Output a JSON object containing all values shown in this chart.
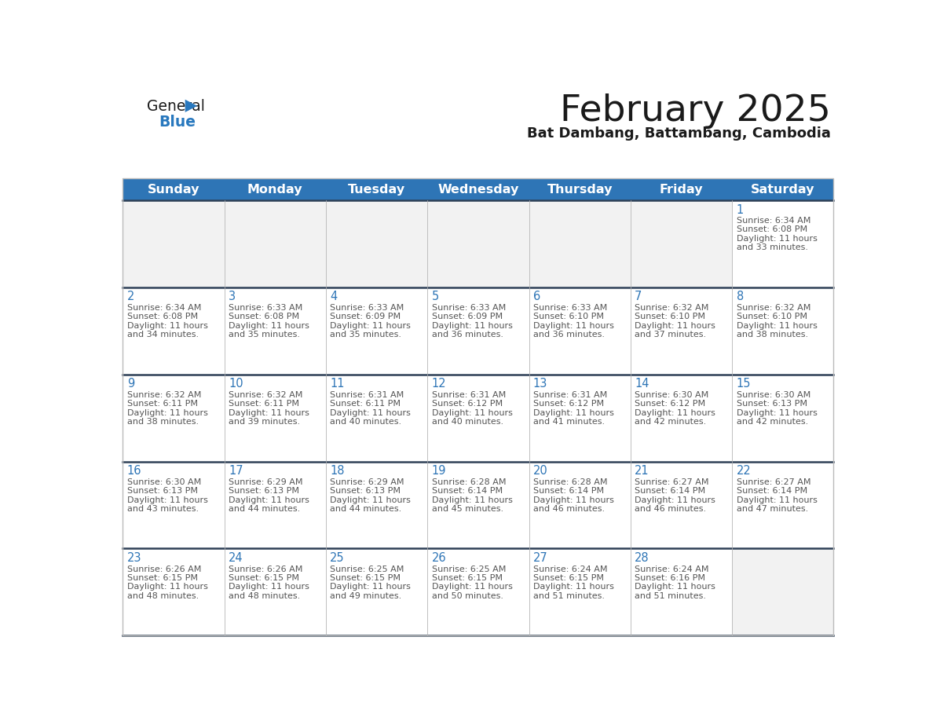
{
  "title": "February 2025",
  "subtitle": "Bat Dambang, Battambang, Cambodia",
  "days_of_week": [
    "Sunday",
    "Monday",
    "Tuesday",
    "Wednesday",
    "Thursday",
    "Friday",
    "Saturday"
  ],
  "header_bg": "#2E75B6",
  "header_text": "#FFFFFF",
  "cell_bg": "#FFFFFF",
  "cell_bg_empty": "#F2F2F2",
  "cell_border_color": "#BBBBBB",
  "row_separator_color": "#2E4057",
  "day_number_color": "#2E75B6",
  "info_text_color": "#555555",
  "title_color": "#1a1a1a",
  "logo_general_color": "#1a1a1a",
  "logo_blue_color": "#2878BE",
  "calendar_data": [
    [
      null,
      null,
      null,
      null,
      null,
      null,
      {
        "day": 1,
        "sunrise": "6:34 AM",
        "sunset": "6:08 PM",
        "daylight": "11 hours and 33 minutes."
      }
    ],
    [
      {
        "day": 2,
        "sunrise": "6:34 AM",
        "sunset": "6:08 PM",
        "daylight": "11 hours and 34 minutes."
      },
      {
        "day": 3,
        "sunrise": "6:33 AM",
        "sunset": "6:08 PM",
        "daylight": "11 hours and 35 minutes."
      },
      {
        "day": 4,
        "sunrise": "6:33 AM",
        "sunset": "6:09 PM",
        "daylight": "11 hours and 35 minutes."
      },
      {
        "day": 5,
        "sunrise": "6:33 AM",
        "sunset": "6:09 PM",
        "daylight": "11 hours and 36 minutes."
      },
      {
        "day": 6,
        "sunrise": "6:33 AM",
        "sunset": "6:10 PM",
        "daylight": "11 hours and 36 minutes."
      },
      {
        "day": 7,
        "sunrise": "6:32 AM",
        "sunset": "6:10 PM",
        "daylight": "11 hours and 37 minutes."
      },
      {
        "day": 8,
        "sunrise": "6:32 AM",
        "sunset": "6:10 PM",
        "daylight": "11 hours and 38 minutes."
      }
    ],
    [
      {
        "day": 9,
        "sunrise": "6:32 AM",
        "sunset": "6:11 PM",
        "daylight": "11 hours and 38 minutes."
      },
      {
        "day": 10,
        "sunrise": "6:32 AM",
        "sunset": "6:11 PM",
        "daylight": "11 hours and 39 minutes."
      },
      {
        "day": 11,
        "sunrise": "6:31 AM",
        "sunset": "6:11 PM",
        "daylight": "11 hours and 40 minutes."
      },
      {
        "day": 12,
        "sunrise": "6:31 AM",
        "sunset": "6:12 PM",
        "daylight": "11 hours and 40 minutes."
      },
      {
        "day": 13,
        "sunrise": "6:31 AM",
        "sunset": "6:12 PM",
        "daylight": "11 hours and 41 minutes."
      },
      {
        "day": 14,
        "sunrise": "6:30 AM",
        "sunset": "6:12 PM",
        "daylight": "11 hours and 42 minutes."
      },
      {
        "day": 15,
        "sunrise": "6:30 AM",
        "sunset": "6:13 PM",
        "daylight": "11 hours and 42 minutes."
      }
    ],
    [
      {
        "day": 16,
        "sunrise": "6:30 AM",
        "sunset": "6:13 PM",
        "daylight": "11 hours and 43 minutes."
      },
      {
        "day": 17,
        "sunrise": "6:29 AM",
        "sunset": "6:13 PM",
        "daylight": "11 hours and 44 minutes."
      },
      {
        "day": 18,
        "sunrise": "6:29 AM",
        "sunset": "6:13 PM",
        "daylight": "11 hours and 44 minutes."
      },
      {
        "day": 19,
        "sunrise": "6:28 AM",
        "sunset": "6:14 PM",
        "daylight": "11 hours and 45 minutes."
      },
      {
        "day": 20,
        "sunrise": "6:28 AM",
        "sunset": "6:14 PM",
        "daylight": "11 hours and 46 minutes."
      },
      {
        "day": 21,
        "sunrise": "6:27 AM",
        "sunset": "6:14 PM",
        "daylight": "11 hours and 46 minutes."
      },
      {
        "day": 22,
        "sunrise": "6:27 AM",
        "sunset": "6:14 PM",
        "daylight": "11 hours and 47 minutes."
      }
    ],
    [
      {
        "day": 23,
        "sunrise": "6:26 AM",
        "sunset": "6:15 PM",
        "daylight": "11 hours and 48 minutes."
      },
      {
        "day": 24,
        "sunrise": "6:26 AM",
        "sunset": "6:15 PM",
        "daylight": "11 hours and 48 minutes."
      },
      {
        "day": 25,
        "sunrise": "6:25 AM",
        "sunset": "6:15 PM",
        "daylight": "11 hours and 49 minutes."
      },
      {
        "day": 26,
        "sunrise": "6:25 AM",
        "sunset": "6:15 PM",
        "daylight": "11 hours and 50 minutes."
      },
      {
        "day": 27,
        "sunrise": "6:24 AM",
        "sunset": "6:15 PM",
        "daylight": "11 hours and 51 minutes."
      },
      {
        "day": 28,
        "sunrise": "6:24 AM",
        "sunset": "6:16 PM",
        "daylight": "11 hours and 51 minutes."
      },
      null
    ]
  ],
  "num_weeks": 5,
  "num_days": 7
}
